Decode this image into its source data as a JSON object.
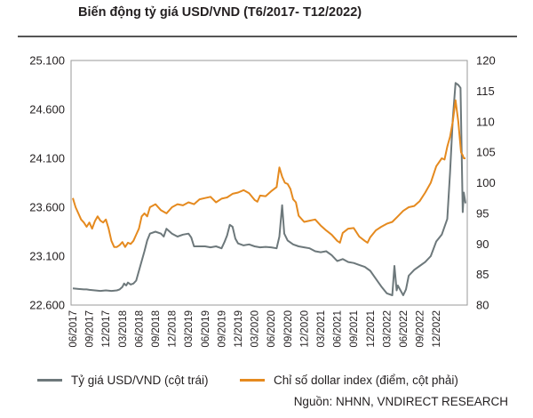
{
  "chart_data": {
    "type": "line",
    "title": "Biến động tỷ giá USD/VND (T6/2017- T12/2022)",
    "x_ticks": [
      "06/2017",
      "09/2017",
      "12/2017",
      "03/2018",
      "06/2018",
      "09/2018",
      "12/2018",
      "03/2019",
      "06/2019",
      "09/2019",
      "12/2019",
      "03/2020",
      "06/2020",
      "09/2020",
      "12/2020",
      "03/2021",
      "06/2021",
      "09/2021",
      "12/2021",
      "03/2022",
      "06/2022",
      "09/2022",
      "12/2022"
    ],
    "y_left": {
      "ticks": [
        "25.100",
        "24.600",
        "24.100",
        "23.600",
        "23.100",
        "22.600"
      ],
      "values": [
        25100,
        24600,
        24100,
        23600,
        23100,
        22600
      ],
      "range": [
        22600,
        25100
      ]
    },
    "y_right": {
      "ticks": [
        "120",
        "115",
        "110",
        "105",
        "100",
        "95",
        "90",
        "85",
        "80"
      ],
      "values": [
        120,
        115,
        110,
        105,
        100,
        95,
        90,
        85,
        80
      ],
      "range": [
        80,
        120
      ]
    },
    "series": [
      {
        "name": "Tỷ giá USD/VND (cột trái)",
        "axis": "left",
        "color": "#6d787b",
        "points": [
          [
            0,
            22770
          ],
          [
            1,
            22765
          ],
          [
            2,
            22760
          ],
          [
            2.5,
            22760
          ],
          [
            3,
            22755
          ],
          [
            4,
            22750
          ],
          [
            5,
            22745
          ],
          [
            6,
            22750
          ],
          [
            7,
            22745
          ],
          [
            8,
            22750
          ],
          [
            8.5,
            22760
          ],
          [
            9,
            22785
          ],
          [
            9.3,
            22820
          ],
          [
            9.7,
            22800
          ],
          [
            10,
            22830
          ],
          [
            10.5,
            22810
          ],
          [
            11,
            22820
          ],
          [
            11.5,
            22850
          ],
          [
            12,
            22950
          ],
          [
            12.5,
            23050
          ],
          [
            13,
            23150
          ],
          [
            13.5,
            23260
          ],
          [
            14,
            23330
          ],
          [
            15,
            23350
          ],
          [
            16,
            23330
          ],
          [
            16.5,
            23300
          ],
          [
            17,
            23380
          ],
          [
            18,
            23330
          ],
          [
            19,
            23300
          ],
          [
            20,
            23320
          ],
          [
            21,
            23330
          ],
          [
            21.5,
            23290
          ],
          [
            22,
            23200
          ],
          [
            24,
            23200
          ],
          [
            25,
            23190
          ],
          [
            26,
            23200
          ],
          [
            27,
            23180
          ],
          [
            27.5,
            23240
          ],
          [
            28,
            23310
          ],
          [
            28.5,
            23420
          ],
          [
            29,
            23400
          ],
          [
            29.5,
            23280
          ],
          [
            30,
            23230
          ],
          [
            31,
            23210
          ],
          [
            32,
            23220
          ],
          [
            33,
            23200
          ],
          [
            34,
            23190
          ],
          [
            35,
            23195
          ],
          [
            36,
            23190
          ],
          [
            37,
            23180
          ],
          [
            37.5,
            23300
          ],
          [
            38,
            23620
          ],
          [
            38.4,
            23330
          ],
          [
            39,
            23260
          ],
          [
            40,
            23220
          ],
          [
            41,
            23200
          ],
          [
            42,
            23190
          ],
          [
            43,
            23180
          ],
          [
            44,
            23150
          ],
          [
            45,
            23140
          ],
          [
            46,
            23150
          ],
          [
            47,
            23110
          ],
          [
            48,
            23050
          ],
          [
            49,
            23070
          ],
          [
            50,
            23040
          ],
          [
            51,
            23030
          ],
          [
            52,
            23010
          ],
          [
            53,
            22990
          ],
          [
            54,
            22950
          ],
          [
            55,
            22870
          ],
          [
            56,
            22790
          ],
          [
            57,
            22720
          ],
          [
            58,
            22700
          ],
          [
            58.4,
            23000
          ],
          [
            58.8,
            22750
          ],
          [
            59,
            22800
          ],
          [
            60,
            22700
          ],
          [
            60.5,
            22760
          ],
          [
            61,
            22900
          ],
          [
            62,
            22960
          ],
          [
            63,
            23000
          ],
          [
            64,
            23040
          ],
          [
            65,
            23100
          ],
          [
            66,
            23250
          ],
          [
            67,
            23320
          ],
          [
            68,
            23480
          ],
          [
            68.5,
            23950
          ],
          [
            69,
            24500
          ],
          [
            69.5,
            24870
          ],
          [
            70,
            24850
          ],
          [
            70.4,
            24820
          ],
          [
            70.8,
            23550
          ],
          [
            71,
            23750
          ],
          [
            71.3,
            23640
          ]
        ]
      },
      {
        "name": "Chỉ số dollar index (điểm, cột phải)",
        "axis": "right",
        "color": "#e58a1f",
        "points": [
          [
            0,
            97.5
          ],
          [
            0.5,
            96
          ],
          [
            1,
            95
          ],
          [
            1.5,
            94
          ],
          [
            2,
            93.5
          ],
          [
            2.5,
            92.8
          ],
          [
            3,
            93.5
          ],
          [
            3.5,
            92.5
          ],
          [
            4,
            93.7
          ],
          [
            4.5,
            94.5
          ],
          [
            5,
            93.8
          ],
          [
            5.5,
            93.5
          ],
          [
            6,
            94
          ],
          [
            6.5,
            92.5
          ],
          [
            7,
            90.5
          ],
          [
            7.5,
            89.5
          ],
          [
            8,
            89.5
          ],
          [
            8.5,
            89.8
          ],
          [
            9,
            90.3
          ],
          [
            9.5,
            89.5
          ],
          [
            10,
            90.2
          ],
          [
            10.5,
            90
          ],
          [
            11,
            90.5
          ],
          [
            11.5,
            91.5
          ],
          [
            12,
            92.5
          ],
          [
            12.5,
            94.5
          ],
          [
            13,
            95
          ],
          [
            13.5,
            94.5
          ],
          [
            14,
            96
          ],
          [
            15,
            96.5
          ],
          [
            16,
            95.5
          ],
          [
            17,
            95
          ],
          [
            18,
            96
          ],
          [
            19,
            96.5
          ],
          [
            20,
            96.3
          ],
          [
            21,
            96.8
          ],
          [
            22,
            96.5
          ],
          [
            23,
            97.3
          ],
          [
            24,
            97.5
          ],
          [
            25,
            97.7
          ],
          [
            26,
            96.8
          ],
          [
            27,
            97.4
          ],
          [
            28,
            97.6
          ],
          [
            29,
            98.2
          ],
          [
            30,
            98.4
          ],
          [
            31,
            98.8
          ],
          [
            32,
            98.3
          ],
          [
            33,
            97.2
          ],
          [
            33.5,
            96.9
          ],
          [
            34,
            97.9
          ],
          [
            35,
            97.8
          ],
          [
            36,
            98.6
          ],
          [
            37,
            99.3
          ],
          [
            37.5,
            102.5
          ],
          [
            38,
            101
          ],
          [
            38.5,
            100
          ],
          [
            39,
            99.8
          ],
          [
            39.5,
            99
          ],
          [
            40,
            97.3
          ],
          [
            40.5,
            96.8
          ],
          [
            41,
            94.6
          ],
          [
            42,
            93.6
          ],
          [
            43,
            93.8
          ],
          [
            44,
            94
          ],
          [
            45,
            93
          ],
          [
            46,
            92.2
          ],
          [
            47,
            91.5
          ],
          [
            48,
            90.5
          ],
          [
            48.5,
            90.2
          ],
          [
            49,
            91.8
          ],
          [
            50,
            92.5
          ],
          [
            51,
            92.6
          ],
          [
            52,
            91.2
          ],
          [
            53,
            90.5
          ],
          [
            53.5,
            90.2
          ],
          [
            54,
            91.1
          ],
          [
            55,
            92.2
          ],
          [
            56,
            92.8
          ],
          [
            57,
            93.3
          ],
          [
            58,
            93.6
          ],
          [
            59,
            94.5
          ],
          [
            60,
            95.4
          ],
          [
            61,
            96
          ],
          [
            62,
            96.2
          ],
          [
            63,
            97
          ],
          [
            64,
            98.4
          ],
          [
            65,
            100
          ],
          [
            66,
            102.7
          ],
          [
            67,
            104
          ],
          [
            67.5,
            103.8
          ],
          [
            68,
            105.9
          ],
          [
            68.5,
            107.5
          ],
          [
            69,
            110
          ],
          [
            69.5,
            113.5
          ],
          [
            70,
            110
          ],
          [
            70.5,
            105
          ],
          [
            70.8,
            104.5
          ],
          [
            71,
            104
          ],
          [
            71.3,
            104
          ]
        ]
      }
    ],
    "legend": [
      "Tỷ giá USD/VND (cột trái)",
      "Chỉ số dollar index (điểm, cột phải)"
    ],
    "legend_position": "bottom"
  },
  "source": "Nguồn: NHNN, VNDIRECT RESEARCH"
}
